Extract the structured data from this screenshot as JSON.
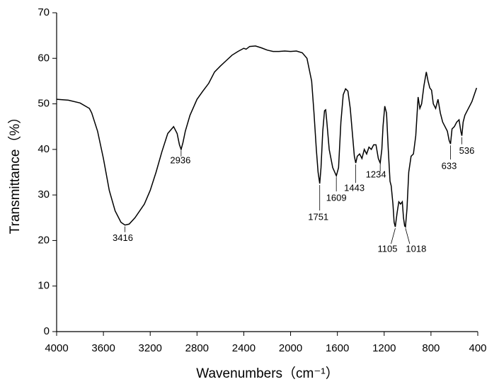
{
  "chart_data": {
    "type": "line",
    "xlabel": "Wavenumbers（cm⁻¹）",
    "ylabel": "Transmittance（%）",
    "xlim": [
      4000,
      400
    ],
    "ylim": [
      0,
      70
    ],
    "xticks": [
      4000,
      3600,
      3200,
      2800,
      2400,
      2000,
      1600,
      1200,
      800,
      400
    ],
    "yticks": [
      0,
      10,
      20,
      30,
      40,
      50,
      60,
      70
    ],
    "x": [
      4000,
      3900,
      3800,
      3720,
      3700,
      3650,
      3600,
      3550,
      3500,
      3450,
      3416,
      3380,
      3330,
      3250,
      3200,
      3150,
      3100,
      3050,
      3000,
      2970,
      2950,
      2936,
      2920,
      2900,
      2860,
      2800,
      2750,
      2700,
      2650,
      2600,
      2550,
      2500,
      2450,
      2400,
      2380,
      2350,
      2300,
      2250,
      2200,
      2150,
      2100,
      2050,
      2000,
      1950,
      1900,
      1860,
      1820,
      1800,
      1780,
      1765,
      1751,
      1740,
      1725,
      1710,
      1700,
      1690,
      1670,
      1640,
      1609,
      1590,
      1570,
      1550,
      1530,
      1510,
      1490,
      1470,
      1455,
      1443,
      1430,
      1410,
      1390,
      1370,
      1350,
      1330,
      1310,
      1290,
      1270,
      1250,
      1234,
      1220,
      1210,
      1195,
      1180,
      1165,
      1150,
      1140,
      1125,
      1115,
      1105,
      1090,
      1075,
      1060,
      1045,
      1035,
      1025,
      1018,
      1005,
      990,
      970,
      950,
      930,
      910,
      895,
      880,
      860,
      840,
      825,
      810,
      795,
      780,
      760,
      740,
      720,
      700,
      680,
      660,
      645,
      633,
      620,
      600,
      580,
      560,
      545,
      536,
      525,
      510,
      490,
      470,
      450,
      430,
      410
    ],
    "series": [
      {
        "color": "#000000",
        "values": [
          51,
          50.8,
          50.2,
          49,
          48,
          44,
          38,
          31,
          26.5,
          24,
          23.4,
          23.6,
          25,
          28,
          31,
          35,
          39.5,
          43.5,
          45,
          43.5,
          41,
          40,
          41.5,
          44,
          47.5,
          51,
          52.8,
          54.5,
          57,
          58.3,
          59.5,
          60.7,
          61.5,
          62.2,
          62,
          62.6,
          62.7,
          62.3,
          61.8,
          61.5,
          61.5,
          61.6,
          61.5,
          61.6,
          61.2,
          60,
          55,
          48,
          40,
          35,
          32.5,
          36,
          44,
          48.5,
          48.7,
          46,
          40,
          36,
          34.2,
          36,
          46,
          52,
          53.3,
          52.8,
          49,
          43,
          38.5,
          37,
          38.5,
          39,
          38,
          40,
          39,
          40.5,
          40,
          41,
          41,
          38,
          37,
          40,
          45,
          49.5,
          48,
          40,
          33,
          32,
          28,
          24,
          23,
          26,
          28.5,
          28,
          28.5,
          25,
          23.2,
          23,
          27,
          35,
          38.5,
          39,
          43,
          51.5,
          49,
          50,
          54,
          57,
          55,
          53.5,
          53,
          50,
          49,
          51,
          48,
          46,
          45,
          44,
          42,
          41.2,
          44.5,
          45,
          46,
          46.5,
          44,
          43,
          46,
          47.5,
          48.5,
          49.5,
          50.5,
          52,
          53.5
        ]
      }
    ],
    "annotations": [
      {
        "text": "3416",
        "x": 3416,
        "y": 23.4
      },
      {
        "text": "2936",
        "x": 2936,
        "y": 40
      },
      {
        "text": "1751",
        "x": 1751,
        "y": 32.5
      },
      {
        "text": "1609",
        "x": 1609,
        "y": 34.2
      },
      {
        "text": "1443",
        "x": 1443,
        "y": 37
      },
      {
        "text": "1234",
        "x": 1234,
        "y": 37
      },
      {
        "text": "1105",
        "x": 1105,
        "y": 23
      },
      {
        "text": "1018",
        "x": 1018,
        "y": 23
      },
      {
        "text": "633",
        "x": 633,
        "y": 41.2
      },
      {
        "text": "536",
        "x": 536,
        "y": 43
      }
    ]
  }
}
